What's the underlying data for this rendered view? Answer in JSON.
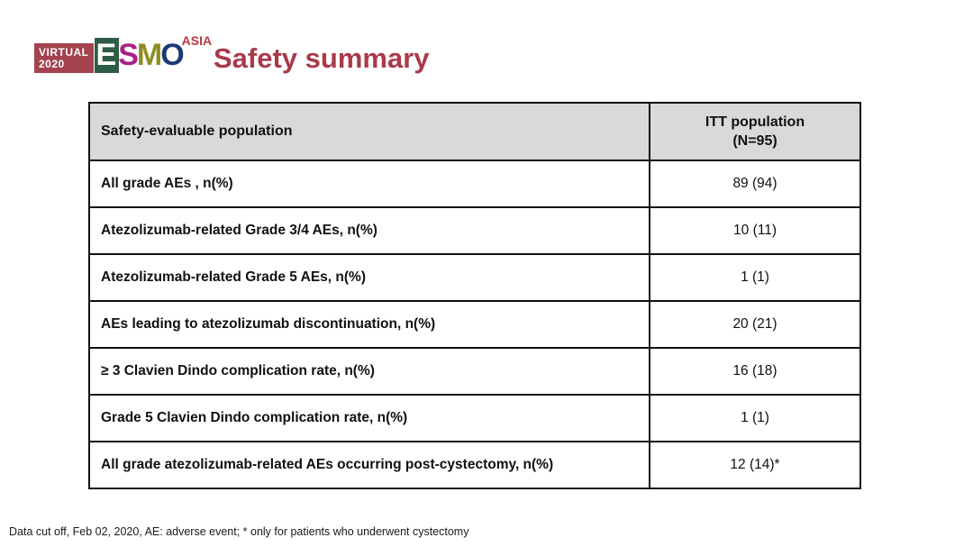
{
  "slide": {
    "title": "Safety summary",
    "footnote": "Data cut off, Feb 02, 2020, AE: adverse event; * only for patients who underwent cystectomy"
  },
  "logo": {
    "virtual_label": "VIRTUAL",
    "year": "2020",
    "letters": {
      "e": "E",
      "s": "S",
      "m": "M",
      "o": "O"
    },
    "asia": "ASIA",
    "colors": {
      "virtual_box": "#A2434E",
      "e_box": "#2F5C45",
      "s": "#A82387",
      "m": "#8F8D25",
      "o": "#1B3A74",
      "asia": "#B8383E"
    }
  },
  "theme": {
    "title_color": "#A93A49",
    "header_bg": "#D9D9D9",
    "table_border": "#111111"
  },
  "table": {
    "header": {
      "population_label": "Safety-evaluable population",
      "itt_line1": "ITT population",
      "itt_line2": "(N=95)"
    },
    "rows": [
      {
        "label": "All grade AEs , n(%)",
        "value": "89 (94)"
      },
      {
        "label": "Atezolizumab-related Grade 3/4 AEs, n(%)",
        "value": "10 (11)"
      },
      {
        "label": "Atezolizumab-related Grade 5 AEs, n(%)",
        "value": "1 (1)"
      },
      {
        "label": "AEs leading to atezolizumab discontinuation, n(%)",
        "value": "20 (21)"
      },
      {
        "label": "≥ 3 Clavien Dindo complication rate, n(%)",
        "value": "16 (18)"
      },
      {
        "label": "Grade 5 Clavien Dindo complication rate, n(%)",
        "value": "1 (1)"
      },
      {
        "label": "All grade atezolizumab-related AEs occurring post-cystectomy, n(%)",
        "value": "12 (14)*"
      }
    ]
  }
}
